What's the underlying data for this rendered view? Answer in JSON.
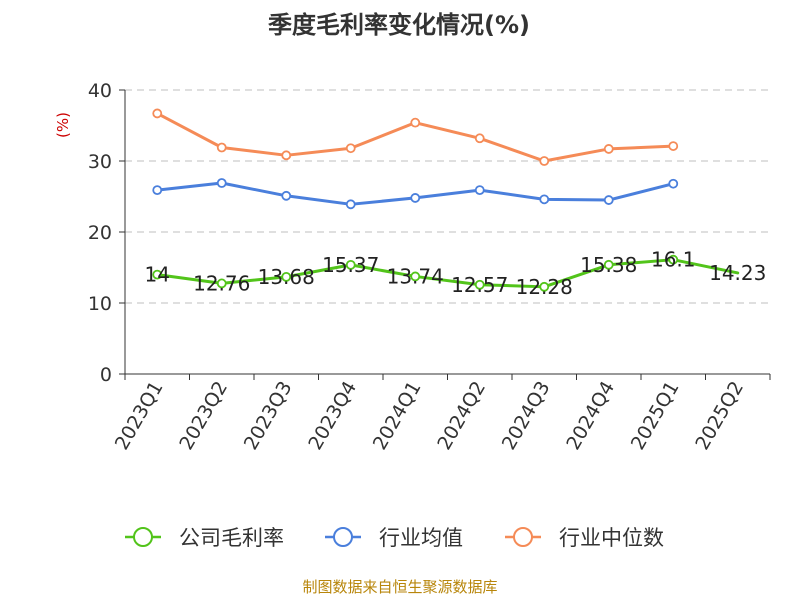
{
  "chart_data": {
    "type": "line",
    "title": "季度毛利率变化情况(%)",
    "ylabel": "(%)",
    "xlabel": "",
    "ylim": [
      0,
      40
    ],
    "yticks": [
      0,
      10,
      20,
      30,
      40
    ],
    "grid": true,
    "legend_position": "bottom",
    "categories": [
      "2023Q1",
      "2023Q2",
      "2023Q3",
      "2023Q4",
      "2024Q1",
      "2024Q2",
      "2024Q3",
      "2024Q4",
      "2025Q1",
      "2025Q2"
    ],
    "series": [
      {
        "name": "公司毛利率",
        "color": "#52c41a",
        "show_labels": true,
        "labels": [
          "14",
          "12.76",
          "13.68",
          "15.37",
          "13.74",
          "12.57",
          "12.28",
          "15.38",
          "16.1",
          "14.23"
        ],
        "values": [
          14,
          12.76,
          13.68,
          15.37,
          13.74,
          12.57,
          12.28,
          15.38,
          16.1,
          14.23
        ]
      },
      {
        "name": "行业均值",
        "color": "#4a7fdc",
        "show_labels": false,
        "values": [
          25.9,
          26.9,
          25.1,
          23.9,
          24.8,
          25.9,
          24.6,
          24.5,
          26.8,
          null
        ]
      },
      {
        "name": "行业中位数",
        "color": "#f58b57",
        "show_labels": false,
        "values": [
          36.7,
          31.9,
          30.8,
          31.8,
          35.4,
          33.2,
          30.0,
          31.7,
          32.1,
          null
        ]
      }
    ],
    "source": "制图数据来自恒生聚源数据库"
  }
}
